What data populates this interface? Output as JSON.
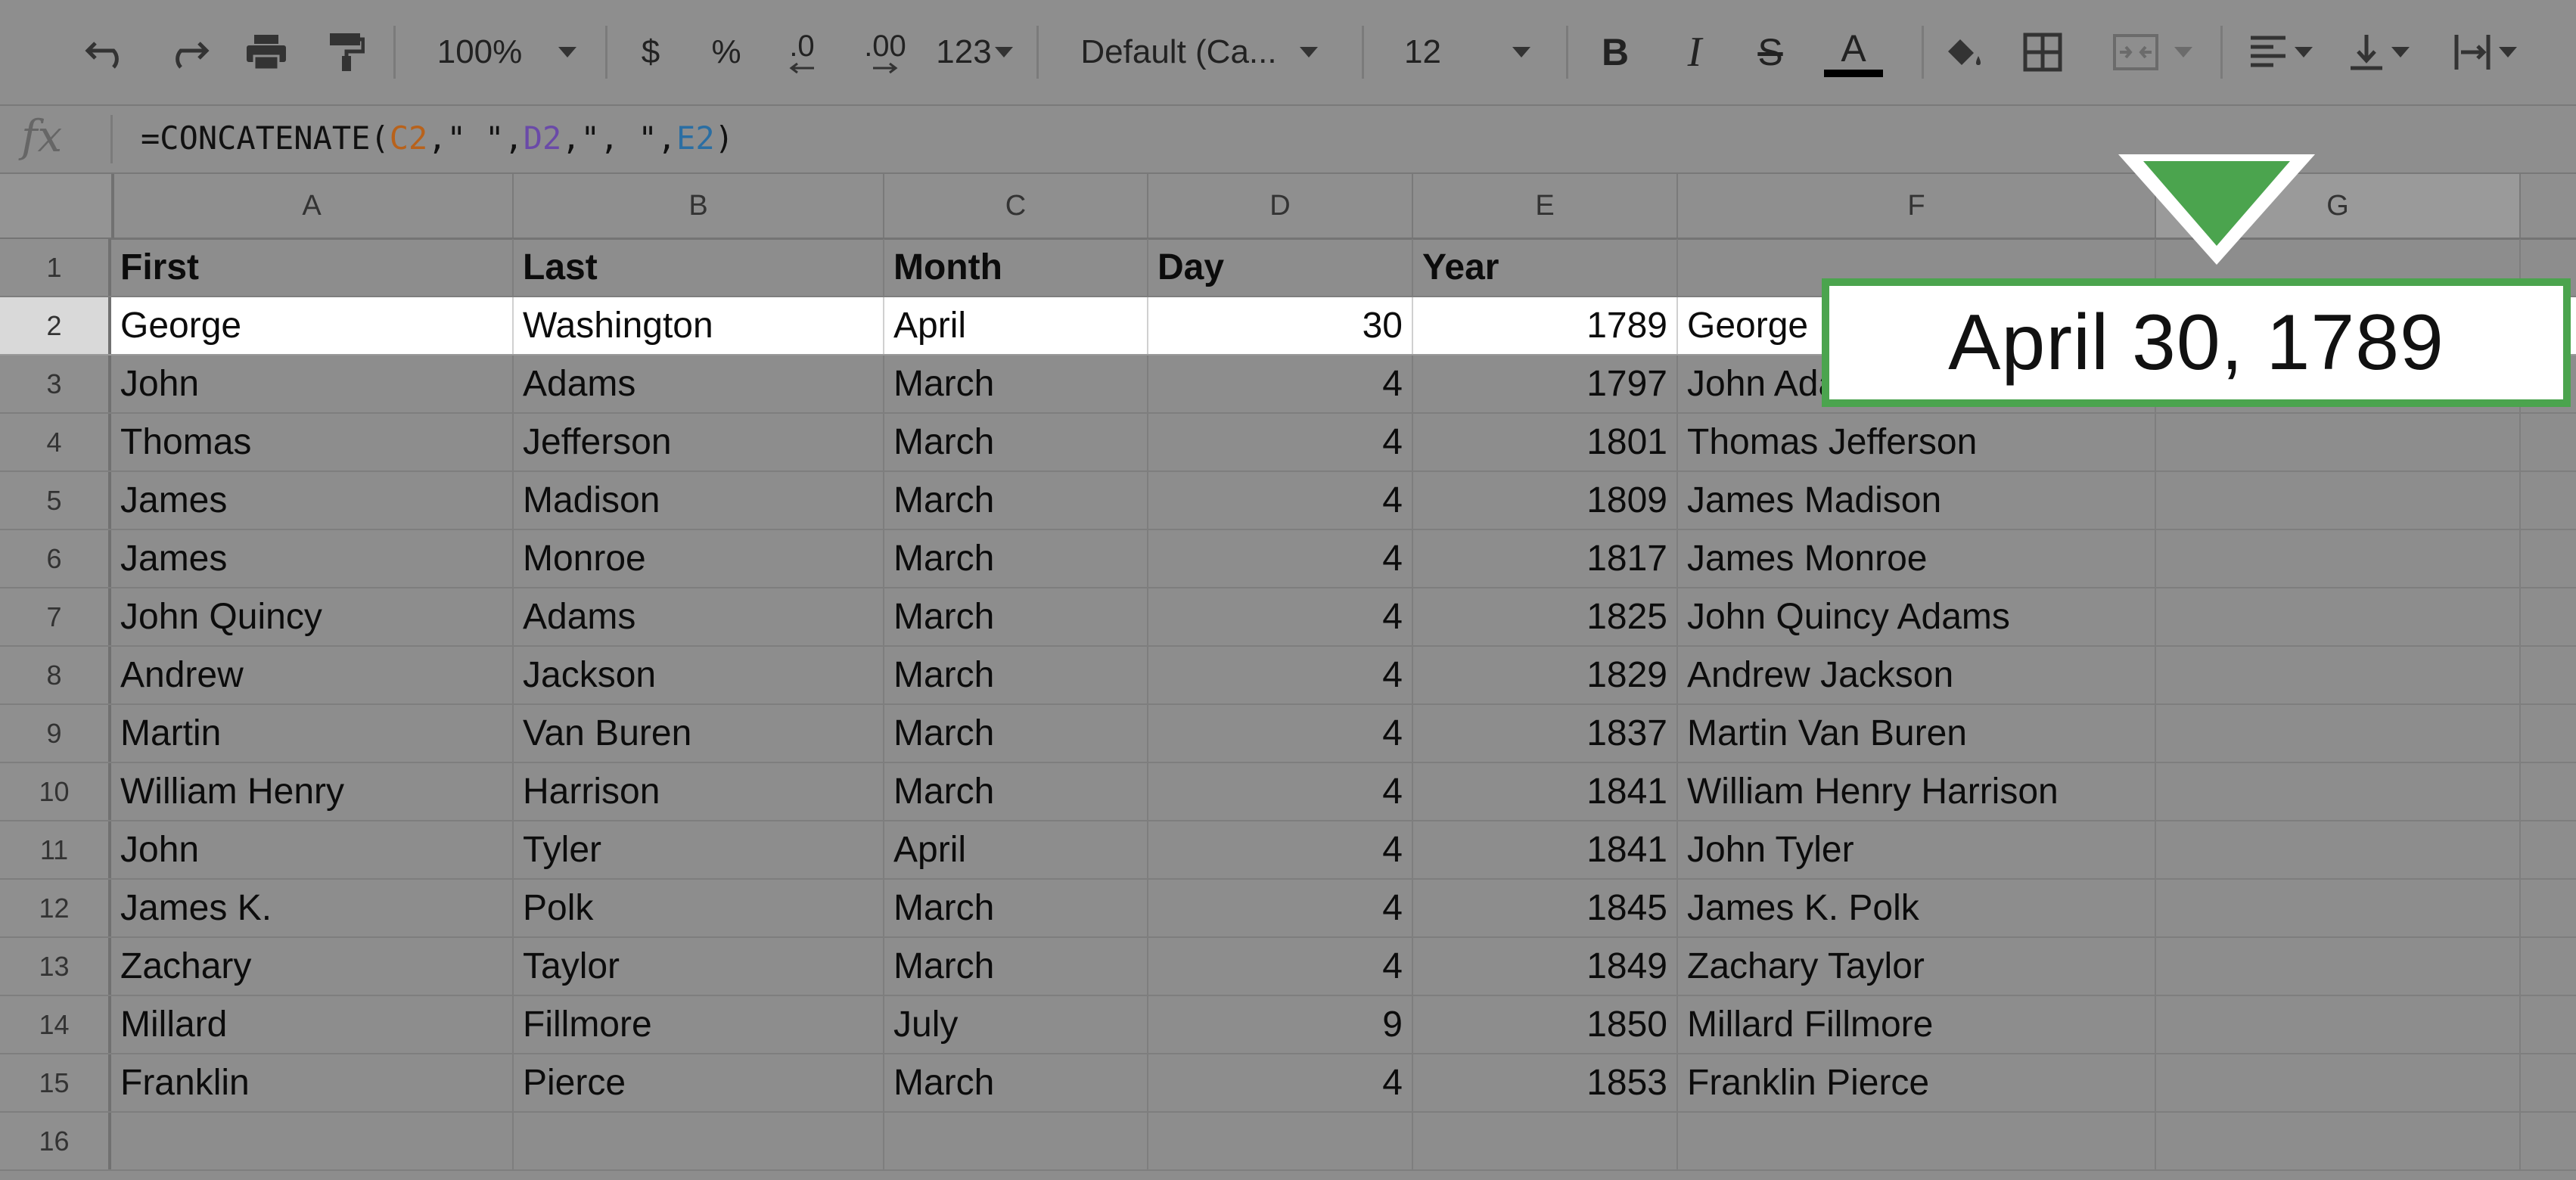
{
  "toolbar": {
    "zoom": "100%",
    "currency": "$",
    "percent": "%",
    "decrease_decimal": ".0",
    "increase_decimal": ".00",
    "number_format": "123",
    "font": "Default (Ca...",
    "font_size": "12",
    "bold": "B",
    "italic": "I",
    "strike": "S",
    "text_color": "A",
    "icons": [
      "undo-icon",
      "redo-icon",
      "print-icon",
      "paint-format-icon",
      "fill-color-icon",
      "borders-icon",
      "merge-cells-icon",
      "align-left-icon",
      "vertical-align-icon",
      "text-wrap-icon"
    ]
  },
  "formula_bar": {
    "fx": "fx",
    "prefix": "=CONCATENATE(",
    "ref_c": "C2",
    "part1": ",\" \",",
    "ref_d": "D2",
    "part2": ",\", \",",
    "ref_e": "E2",
    "suffix": ")"
  },
  "columns": [
    "A",
    "B",
    "C",
    "D",
    "E",
    "F",
    "G"
  ],
  "header_row": {
    "row": "1",
    "cells": [
      "First",
      "Last",
      "Month",
      "Day",
      "Year",
      "",
      ""
    ]
  },
  "rows": [
    {
      "row": "2",
      "first": "George",
      "last": "Washington",
      "month": "April",
      "day": "30",
      "year": "1789",
      "full": "George"
    },
    {
      "row": "3",
      "first": "John",
      "last": "Adams",
      "month": "March",
      "day": "4",
      "year": "1797",
      "full": "John Adams"
    },
    {
      "row": "4",
      "first": "Thomas",
      "last": "Jefferson",
      "month": "March",
      "day": "4",
      "year": "1801",
      "full": "Thomas Jefferson"
    },
    {
      "row": "5",
      "first": "James",
      "last": "Madison",
      "month": "March",
      "day": "4",
      "year": "1809",
      "full": "James Madison"
    },
    {
      "row": "6",
      "first": "James",
      "last": "Monroe",
      "month": "March",
      "day": "4",
      "year": "1817",
      "full": "James Monroe"
    },
    {
      "row": "7",
      "first": "John Quincy",
      "last": "Adams",
      "month": "March",
      "day": "4",
      "year": "1825",
      "full": "John Quincy Adams"
    },
    {
      "row": "8",
      "first": "Andrew",
      "last": "Jackson",
      "month": "March",
      "day": "4",
      "year": "1829",
      "full": "Andrew Jackson"
    },
    {
      "row": "9",
      "first": "Martin",
      "last": "Van Buren",
      "month": "March",
      "day": "4",
      "year": "1837",
      "full": "Martin Van Buren"
    },
    {
      "row": "10",
      "first": "William Henry",
      "last": "Harrison",
      "month": "March",
      "day": "4",
      "year": "1841",
      "full": "William Henry Harrison"
    },
    {
      "row": "11",
      "first": "John",
      "last": "Tyler",
      "month": "April",
      "day": "4",
      "year": "1841",
      "full": "John Tyler"
    },
    {
      "row": "12",
      "first": "James K.",
      "last": "Polk",
      "month": "March",
      "day": "4",
      "year": "1845",
      "full": "James K. Polk"
    },
    {
      "row": "13",
      "first": "Zachary",
      "last": "Taylor",
      "month": "March",
      "day": "4",
      "year": "1849",
      "full": "Zachary Taylor"
    },
    {
      "row": "14",
      "first": "Millard",
      "last": "Fillmore",
      "month": "July",
      "day": "9",
      "year": "1850",
      "full": "Millard Fillmore"
    },
    {
      "row": "15",
      "first": "Franklin",
      "last": "Pierce",
      "month": "March",
      "day": "4",
      "year": "1853",
      "full": "Franklin Pierce"
    },
    {
      "row": "16",
      "first": "",
      "last": "",
      "month": "",
      "day": "",
      "year": "",
      "full": ""
    }
  ],
  "callout": {
    "text": "April 30, 1789",
    "color": "#4ba44e"
  }
}
